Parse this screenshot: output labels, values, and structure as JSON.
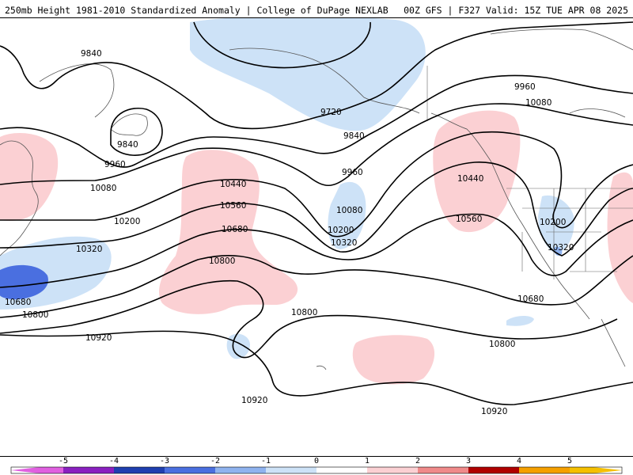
{
  "header": {
    "title_left": "250mb Height 1981-2010 Standardized Anomaly | College of DuPage NEXLAB",
    "title_right": "00Z GFS | F327 Valid: 15Z TUE APR 08 2025"
  },
  "map": {
    "contour_labels": [
      "9840",
      "9840",
      "9960",
      "10080",
      "10200",
      "10320",
      "10680",
      "10800",
      "10920",
      "10440",
      "10560",
      "10680",
      "10800",
      "9720",
      "9840",
      "9960",
      "10080",
      "10200",
      "10320",
      "10440",
      "10560",
      "9960",
      "10080",
      "10200",
      "10320",
      "10680",
      "10800",
      "10800",
      "10920",
      "10920"
    ],
    "anomaly_colors": {
      "pos1": "#fbd0d3",
      "neg1": "#cde2f7",
      "neg2": "#4a6fe0"
    }
  },
  "colorbar": {
    "ticks": [
      "-5",
      "-4",
      "-3",
      "-2",
      "-1",
      "0",
      "1",
      "2",
      "3",
      "4",
      "5"
    ],
    "colors": [
      "#e060e0",
      "#8a20c0",
      "#1f3fb0",
      "#4a6fe0",
      "#8fb3ef",
      "#cde2f7",
      "#ffffff",
      "#fbd0d3",
      "#f08a8a",
      "#e03030",
      "#b00000",
      "#f5a000",
      "#f5c000"
    ]
  }
}
